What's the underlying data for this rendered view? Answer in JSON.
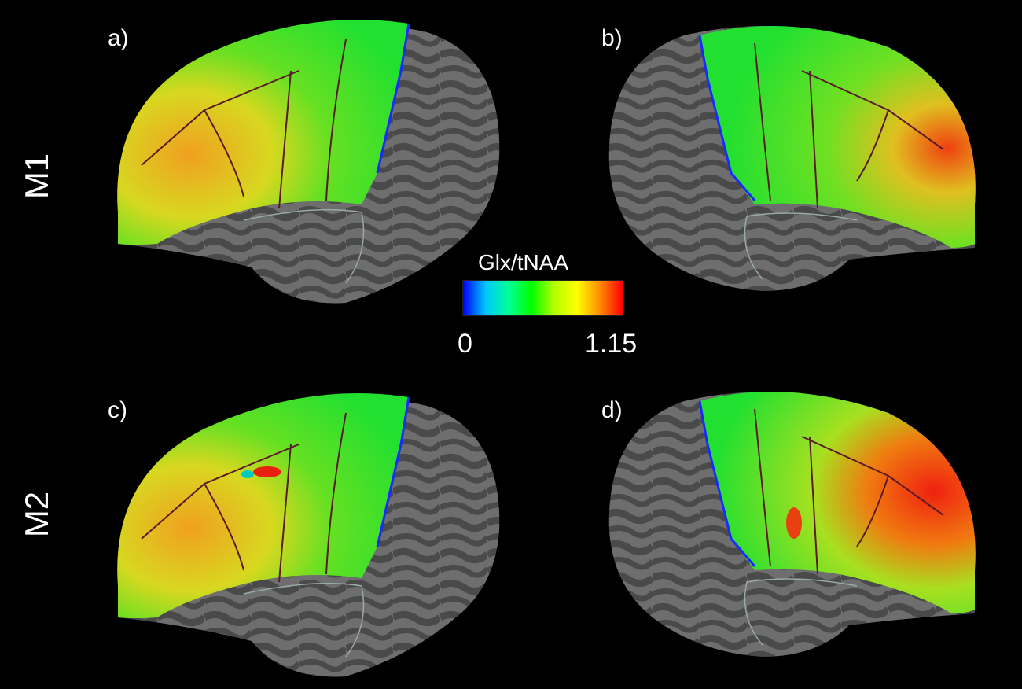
{
  "panels": [
    {
      "label": "a)"
    },
    {
      "label": "b)"
    },
    {
      "label": "c)"
    },
    {
      "label": "d)"
    }
  ],
  "rows": [
    {
      "label": "M1"
    },
    {
      "label": "M2"
    }
  ],
  "colorbar": {
    "title": "Glx/tNAA",
    "min_label": "0",
    "max_label": "1.15",
    "min": 0,
    "max": 1.15,
    "colormap": [
      "#0000ff",
      "#00c8ff",
      "#00ff96",
      "#00ff00",
      "#b4ff00",
      "#ffff00",
      "#ff8c00",
      "#ff0000"
    ]
  },
  "colors": {
    "background": "#000000",
    "cortex_dark": "#4a4a4a",
    "cortex_light": "#7a7a7a",
    "map_green": "#33dd22",
    "map_yellow": "#d8e020",
    "map_red": "#e83010",
    "boundary": "#5a1a2a"
  }
}
